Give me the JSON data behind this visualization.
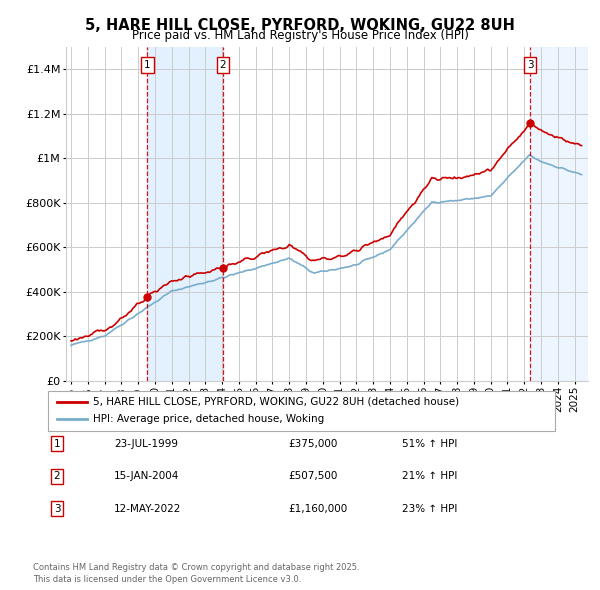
{
  "title": "5, HARE HILL CLOSE, PYRFORD, WOKING, GU22 8UH",
  "subtitle": "Price paid vs. HM Land Registry's House Price Index (HPI)",
  "legend_line1": "5, HARE HILL CLOSE, PYRFORD, WOKING, GU22 8UH (detached house)",
  "legend_line2": "HPI: Average price, detached house, Woking",
  "footer_line1": "Contains HM Land Registry data © Crown copyright and database right 2025.",
  "footer_line2": "This data is licensed under the Open Government Licence v3.0.",
  "sales": [
    {
      "label": "1",
      "date": "23-JUL-1999",
      "price": 375000,
      "price_str": "£375,000",
      "pct": "51%",
      "direction": "↑"
    },
    {
      "label": "2",
      "date": "15-JAN-2004",
      "price": 507500,
      "price_str": "£507,500",
      "pct": "21%",
      "direction": "↑"
    },
    {
      "label": "3",
      "date": "12-MAY-2022",
      "price": 1160000,
      "price_str": "£1,160,000",
      "pct": "23%",
      "direction": "↑"
    }
  ],
  "sale_dates_decimal": [
    1999.554,
    2004.042,
    2022.36
  ],
  "sale_prices": [
    375000,
    507500,
    1160000
  ],
  "ylim": [
    0,
    1500000
  ],
  "yticks": [
    0,
    200000,
    400000,
    600000,
    800000,
    1000000,
    1200000,
    1400000
  ],
  "ytick_labels": [
    "£0",
    "£200K",
    "£400K",
    "£600K",
    "£800K",
    "£1M",
    "£1.2M",
    "£1.4M"
  ],
  "xlim_start": 1994.7,
  "xlim_end": 2025.8,
  "red_color": "#cc0000",
  "blue_color": "#7aadcc",
  "background_color": "#ffffff",
  "grid_color": "#cccccc",
  "shade_color": "#ddeeff"
}
